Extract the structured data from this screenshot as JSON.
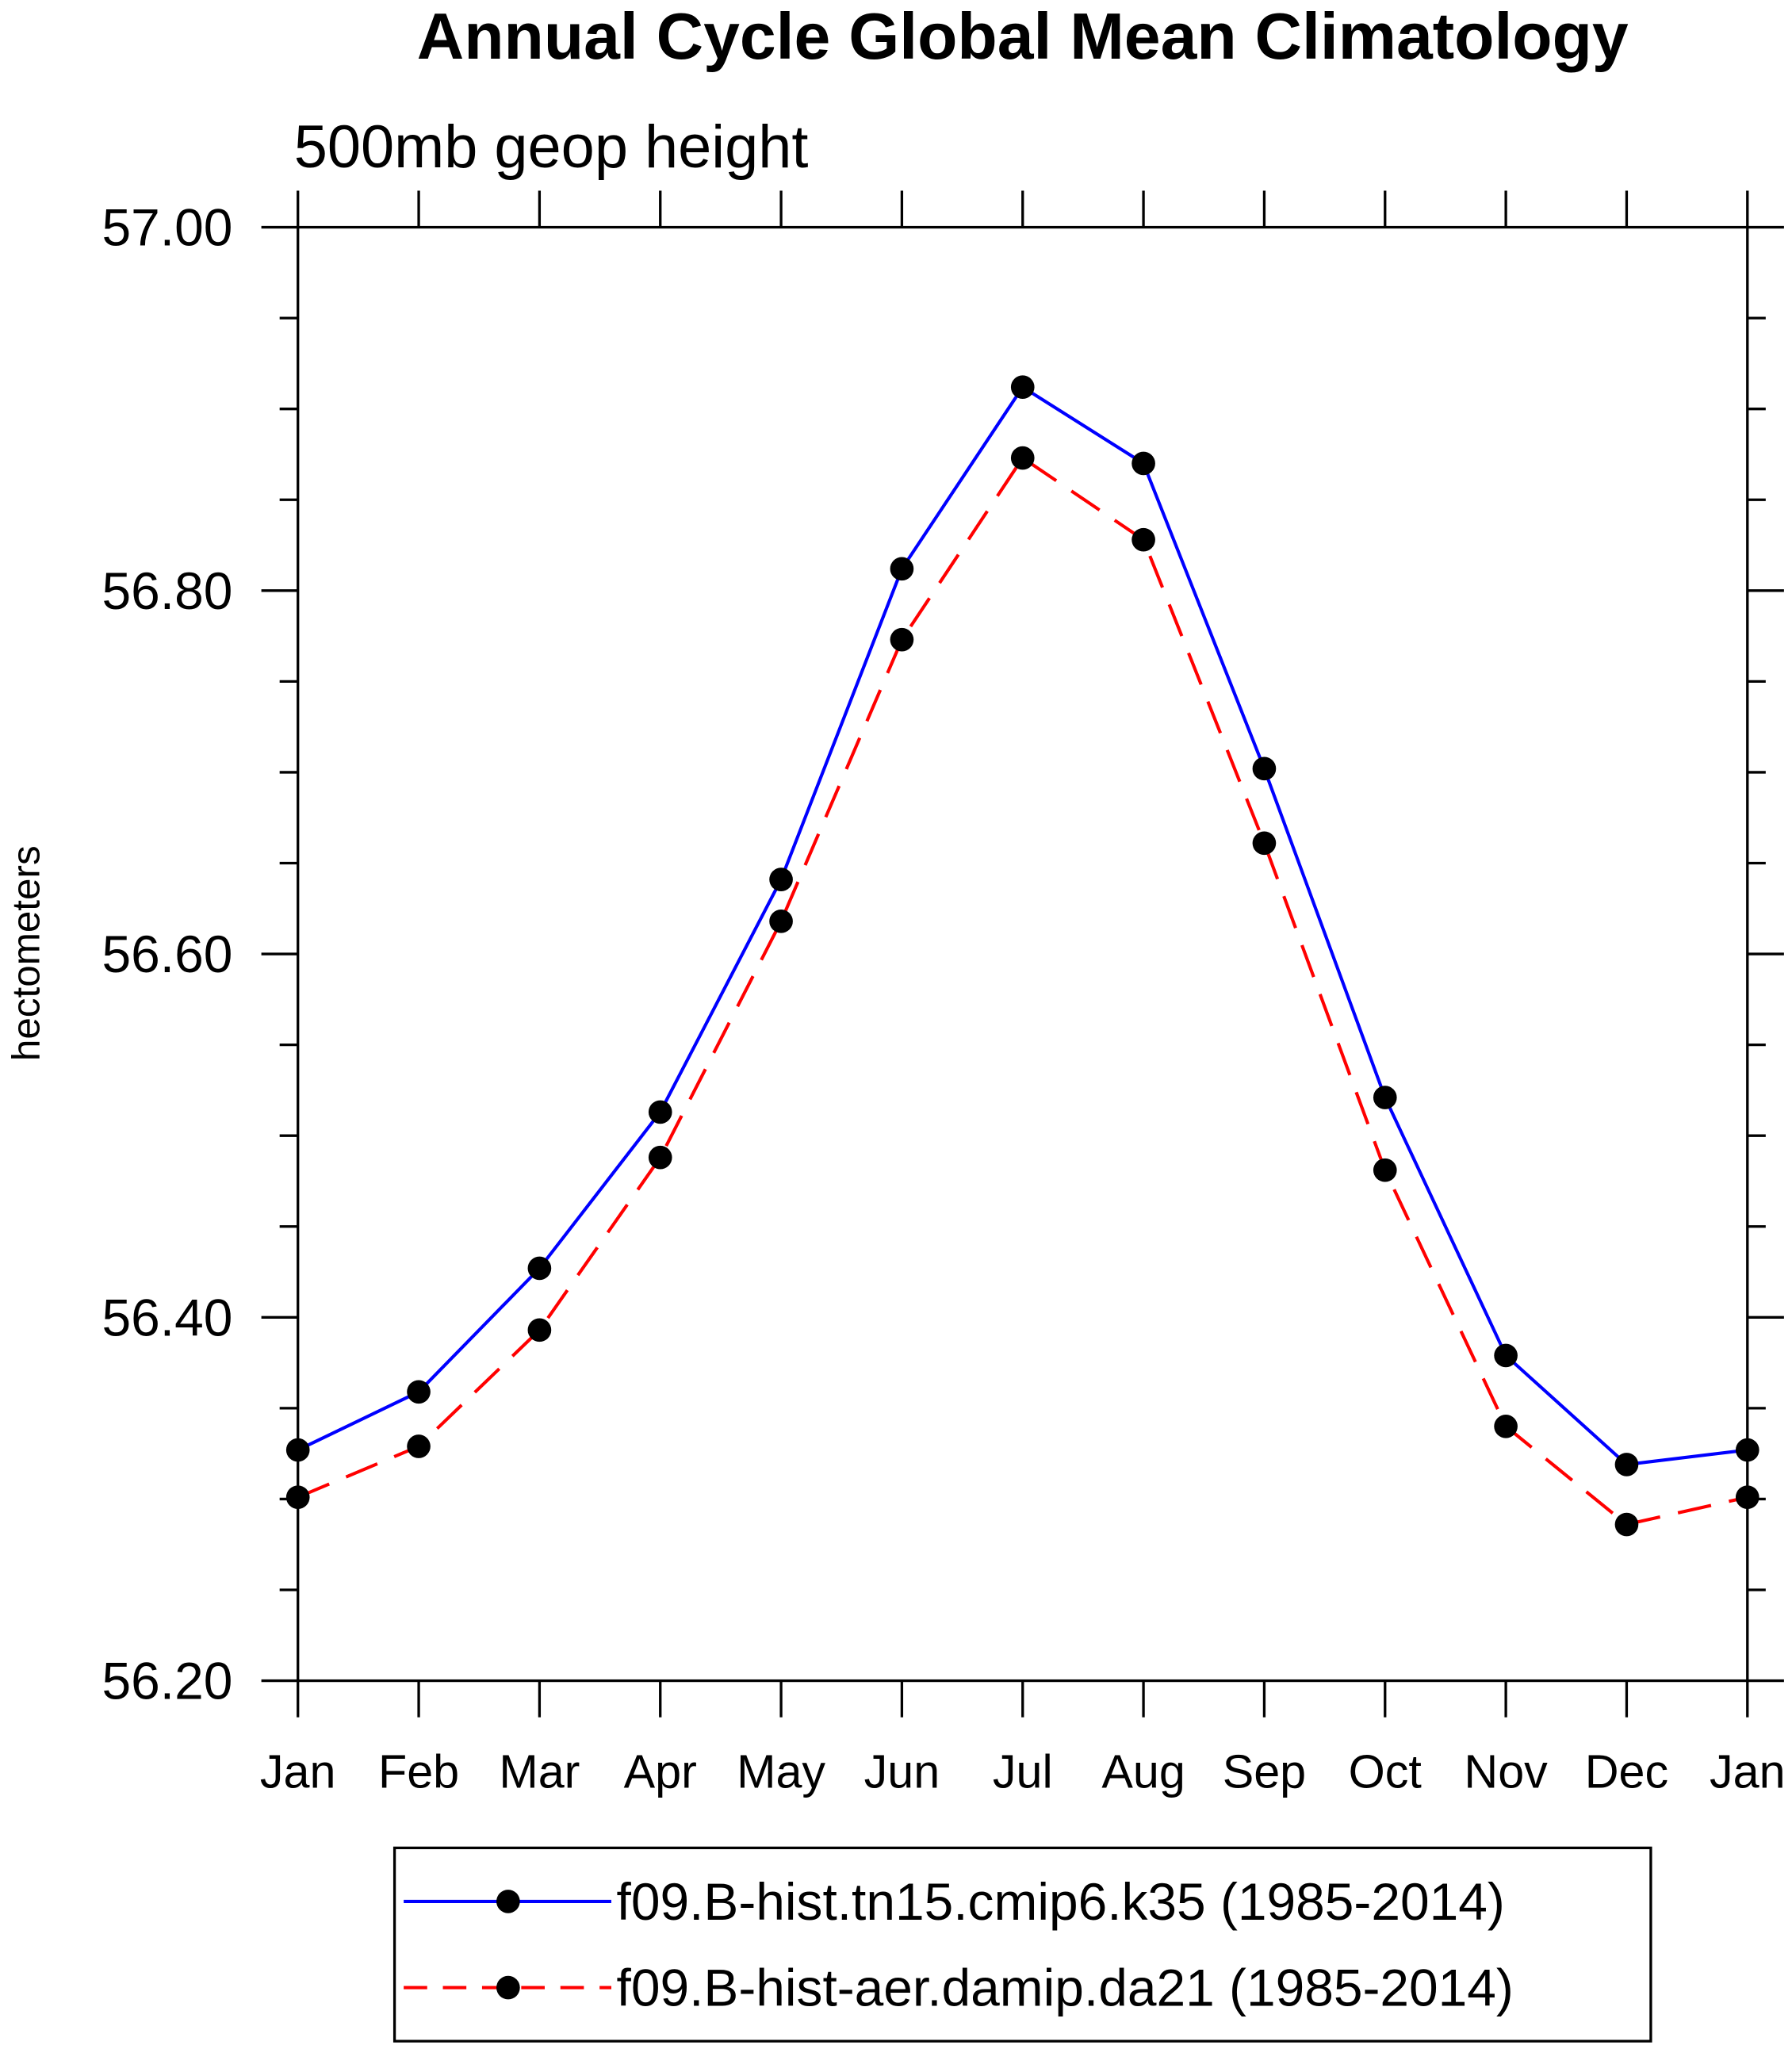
{
  "chart_data": {
    "type": "line",
    "title": "Annual Cycle Global Mean Climatology",
    "subtitle": "500mb geop height",
    "xlabel": "",
    "ylabel": "hectometers",
    "categories": [
      "Jan",
      "Feb",
      "Mar",
      "Apr",
      "May",
      "Jun",
      "Jul",
      "Aug",
      "Sep",
      "Oct",
      "Nov",
      "Dec",
      "Jan"
    ],
    "ylim": [
      56.2,
      57.0
    ],
    "yticks": [
      "56.20",
      "56.40",
      "56.60",
      "56.80",
      "57.00"
    ],
    "ytick_values": [
      56.2,
      56.4,
      56.6,
      56.8,
      57.0
    ],
    "y_minor_step": 0.05,
    "grid": false,
    "legend_position": "bottom",
    "series": [
      {
        "name": "f09.B-hist.tn15.cmip6.k35 (1985-2014)",
        "color": "#0000ff",
        "dash": "solid",
        "values": [
          56.327,
          56.359,
          56.427,
          56.513,
          56.641,
          56.812,
          56.912,
          56.87,
          56.702,
          56.521,
          56.379,
          56.319,
          56.327
        ]
      },
      {
        "name": "f09.B-hist-aer.damip.da21 (1985-2014)",
        "color": "#ff0000",
        "dash": "dashed",
        "values": [
          56.301,
          56.329,
          56.393,
          56.488,
          56.618,
          56.773,
          56.873,
          56.828,
          56.661,
          56.481,
          56.34,
          56.286,
          56.301
        ]
      }
    ]
  }
}
